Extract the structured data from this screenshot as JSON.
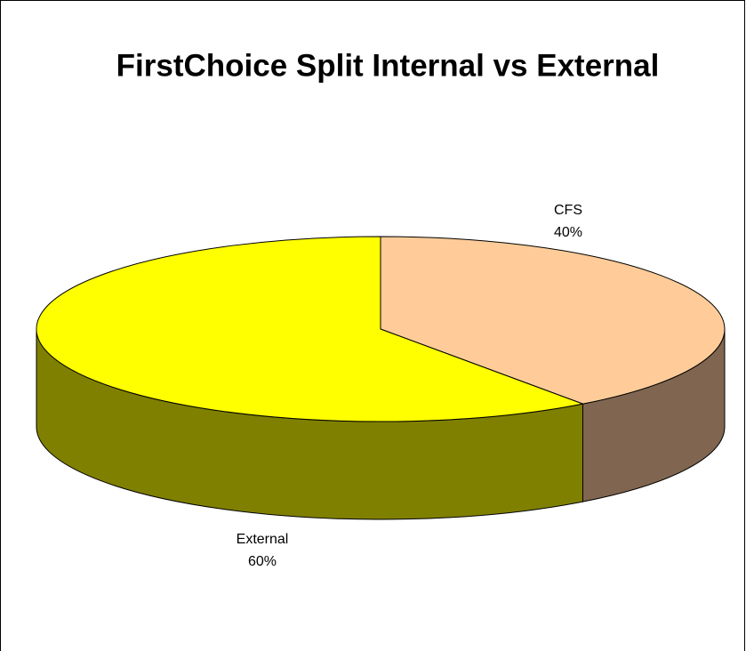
{
  "chart_data": {
    "type": "pie",
    "title": "FirstChoice Split Internal vs External",
    "categories": [
      "CFS",
      "External"
    ],
    "values": [
      40,
      60
    ],
    "value_labels": [
      "40%",
      "60%"
    ],
    "colors": [
      "#FFCC99",
      "#FFFF00"
    ],
    "side_colors": [
      "#806650",
      "#808000"
    ]
  }
}
